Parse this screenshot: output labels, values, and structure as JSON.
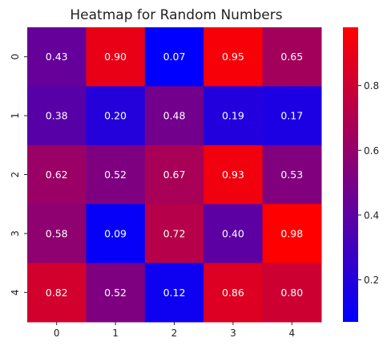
{
  "chart_data": {
    "type": "heatmap",
    "title": "Heatmap for Random Numbers",
    "x_tick_labels": [
      "0",
      "1",
      "2",
      "3",
      "4"
    ],
    "y_tick_labels": [
      "0",
      "1",
      "2",
      "3",
      "4"
    ],
    "values": [
      [
        0.43,
        0.9,
        0.07,
        0.95,
        0.65
      ],
      [
        0.38,
        0.2,
        0.48,
        0.19,
        0.17
      ],
      [
        0.62,
        0.52,
        0.67,
        0.93,
        0.53
      ],
      [
        0.58,
        0.09,
        0.72,
        0.4,
        0.98
      ],
      [
        0.82,
        0.52,
        0.12,
        0.86,
        0.8
      ]
    ],
    "cell_labels": [
      [
        "0.43",
        "0.90",
        "0.07",
        "0.95",
        "0.65"
      ],
      [
        "0.38",
        "0.20",
        "0.48",
        "0.19",
        "0.17"
      ],
      [
        "0.62",
        "0.52",
        "0.67",
        "0.93",
        "0.53"
      ],
      [
        "0.58",
        "0.09",
        "0.72",
        "0.40",
        "0.98"
      ],
      [
        "0.82",
        "0.52",
        "0.12",
        "0.86",
        "0.80"
      ]
    ],
    "colormap": {
      "low_color": "#0000ff",
      "high_color": "#ff0000",
      "vmin": 0.07,
      "vmax": 0.98
    },
    "colorbar": {
      "ticks": [
        0.2,
        0.4,
        0.6,
        0.8
      ],
      "tick_labels": [
        "0.2",
        "0.4",
        "0.6",
        "0.8"
      ]
    },
    "xlabel": "",
    "ylabel": "",
    "grid": false
  }
}
